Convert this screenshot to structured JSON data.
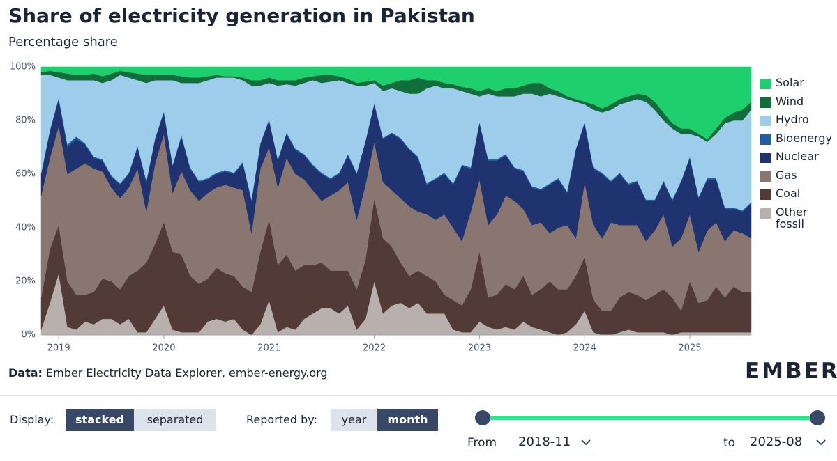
{
  "chart_data": {
    "type": "area",
    "title": "Share of electricity generation in Pakistan",
    "subtitle": "Percentage share",
    "source_label": "Data:",
    "source": "Ember Electricity Data Explorer, ember-energy.org",
    "brand": "EMBER",
    "stacked": true,
    "x": [
      "2018-11",
      "2018-12",
      "2019-01",
      "2019-02",
      "2019-03",
      "2019-04",
      "2019-05",
      "2019-06",
      "2019-07",
      "2019-08",
      "2019-09",
      "2019-10",
      "2019-11",
      "2019-12",
      "2020-01",
      "2020-02",
      "2020-03",
      "2020-04",
      "2020-05",
      "2020-06",
      "2020-07",
      "2020-08",
      "2020-09",
      "2020-10",
      "2020-11",
      "2020-12",
      "2021-01",
      "2021-02",
      "2021-03",
      "2021-04",
      "2021-05",
      "2021-06",
      "2021-07",
      "2021-08",
      "2021-09",
      "2021-10",
      "2021-11",
      "2021-12",
      "2022-01",
      "2022-02",
      "2022-03",
      "2022-04",
      "2022-05",
      "2022-06",
      "2022-07",
      "2022-08",
      "2022-09",
      "2022-10",
      "2022-11",
      "2022-12",
      "2023-01",
      "2023-02",
      "2023-03",
      "2023-04",
      "2023-05",
      "2023-06",
      "2023-07",
      "2023-08",
      "2023-09",
      "2023-10",
      "2023-11",
      "2023-12",
      "2024-01",
      "2024-02",
      "2024-03",
      "2024-04",
      "2024-05",
      "2024-06",
      "2024-07",
      "2024-08",
      "2024-09",
      "2024-10",
      "2024-11",
      "2024-12",
      "2025-01",
      "2025-02",
      "2025-03",
      "2025-04",
      "2025-05",
      "2025-06",
      "2025-07",
      "2025-08"
    ],
    "xticks": [
      {
        "value": "2019-01",
        "label": "2019"
      },
      {
        "value": "2020-01",
        "label": "2020"
      },
      {
        "value": "2021-01",
        "label": "2021"
      },
      {
        "value": "2022-01",
        "label": "2022"
      },
      {
        "value": "2023-01",
        "label": "2023"
      },
      {
        "value": "2024-01",
        "label": "2024"
      },
      {
        "value": "2025-01",
        "label": "2025"
      }
    ],
    "ylim": [
      0,
      100
    ],
    "yticks": [
      {
        "value": 0,
        "label": "0%"
      },
      {
        "value": 20,
        "label": "20%"
      },
      {
        "value": 40,
        "label": "40%"
      },
      {
        "value": 60,
        "label": "60%"
      },
      {
        "value": 80,
        "label": "80%"
      },
      {
        "value": 100,
        "label": "100%"
      }
    ],
    "series": [
      {
        "name": "Solar",
        "color": "#1ecf6e",
        "values": [
          2,
          1.5,
          2,
          2.5,
          3,
          3,
          2.5,
          3.5,
          2.5,
          1.5,
          2,
          2.5,
          3,
          3,
          3,
          3,
          3.5,
          4,
          4,
          3.5,
          3,
          3.5,
          3.5,
          4,
          5,
          5,
          4,
          5,
          5,
          5,
          4,
          3.5,
          3,
          3,
          3.5,
          4.5,
          6,
          5.5,
          5,
          7,
          6,
          5,
          5,
          4,
          5,
          5,
          6,
          6.5,
          7.5,
          8,
          9,
          8,
          9,
          8,
          8,
          7,
          6,
          6,
          8,
          9,
          11,
          12,
          13,
          14,
          15.5,
          14,
          12,
          11,
          10,
          10.5,
          13,
          17,
          21,
          23,
          23,
          25,
          27,
          23,
          19,
          17,
          16,
          13
        ]
      },
      {
        "name": "Wind",
        "color": "#116e3a",
        "values": [
          1,
          1.5,
          2,
          2.5,
          2,
          2,
          2.5,
          2.5,
          2.5,
          1.5,
          2,
          2.5,
          3,
          2,
          2,
          2,
          2.5,
          2,
          2,
          1.5,
          1,
          0.5,
          0.5,
          1,
          2,
          2,
          2,
          2,
          1.5,
          2,
          2,
          1.5,
          3,
          2.5,
          1.5,
          1.5,
          1,
          1.5,
          1,
          2,
          2,
          4,
          5,
          6,
          3,
          2,
          2,
          1.5,
          1.5,
          2,
          2,
          2,
          2,
          3,
          3,
          3,
          4,
          5,
          2,
          2,
          1,
          1,
          1,
          2,
          1.5,
          2,
          2,
          2,
          2,
          2.5,
          3,
          3,
          2,
          2,
          2,
          1,
          1,
          2,
          2,
          3,
          4,
          3
        ]
      },
      {
        "name": "Hydro",
        "color": "#9ecdec",
        "values": [
          36.5,
          20.5,
          7.5,
          24,
          21,
          23.5,
          28.5,
          28.5,
          35.5,
          40.5,
          35.5,
          24.5,
          36.5,
          21.5,
          11.5,
          31.5,
          19.5,
          31.5,
          36.5,
          36.5,
          35.5,
          34.5,
          35.5,
          30.5,
          42.5,
          21.5,
          13.5,
          27.5,
          18,
          23.5,
          26.5,
          31.5,
          33.5,
          36,
          34.5,
          26.5,
          32.5,
          20.5,
          7.5,
          17.5,
          16.5,
          17.5,
          20.5,
          23.5,
          35.5,
          34.5,
          31.5,
          35.5,
          27.5,
          27.5,
          9.5,
          24.5,
          23.5,
          21.5,
          26.5,
          28.5,
          34.5,
          34.5,
          33.5,
          30.5,
          34.5,
          17.5,
          6.5,
          21.5,
          22.5,
          26.5,
          25.5,
          30.5,
          30.5,
          36.5,
          33.5,
          22.5,
          26.5,
          17.5,
          8.5,
          22.5,
          13.5,
          16.5,
          31.5,
          32.5,
          33.5,
          34.5
        ]
      },
      {
        "name": "Bioenergy",
        "color": "#1f5f9e",
        "values": [
          0.5,
          0.5,
          0.5,
          1,
          1,
          0.5,
          0.5,
          0.5,
          0.5,
          0.5,
          0.5,
          0.5,
          0.5,
          0.5,
          0.5,
          0.5,
          0.5,
          0.5,
          0.5,
          0.5,
          0.5,
          0.5,
          0.5,
          0.5,
          0.5,
          0.5,
          0.5,
          0.5,
          0.5,
          0.5,
          0.5,
          0.5,
          0.5,
          0.5,
          0.5,
          0.5,
          0.5,
          0.5,
          0.5,
          0.5,
          0.5,
          0.5,
          0.5,
          0.5,
          0.5,
          0.5,
          0.5,
          0.5,
          0.5,
          0.5,
          0.5,
          0.5,
          0.5,
          0.5,
          0.5,
          0.5,
          0.5,
          0.5,
          0.5,
          0.5,
          0.5,
          0.5,
          0.5,
          0.5,
          0.5,
          0.5,
          0.5,
          0.5,
          0.5,
          0.5,
          0.5,
          0.5,
          0.5,
          0.5,
          0.5,
          0.5,
          0.5,
          0.5,
          0.5,
          0.5,
          0.5,
          0.5
        ]
      },
      {
        "name": "Nuclear",
        "color": "#1f3370",
        "values": [
          8,
          10,
          10,
          10,
          11,
          7,
          4,
          4,
          4,
          5,
          5,
          8,
          11,
          9,
          8,
          10,
          13,
          8,
          7,
          5,
          5,
          5,
          5,
          10,
          12,
          9,
          10,
          10,
          9,
          9,
          9,
          9,
          10,
          6,
          6,
          10,
          17,
          16,
          14,
          16,
          21,
          22,
          21,
          20,
          11,
          15,
          15,
          16,
          28,
          16,
          21,
          24,
          20,
          15,
          12,
          14,
          14,
          12,
          18,
          18,
          12,
          33,
          22,
          21,
          24,
          15,
          19,
          15,
          16,
          15,
          11,
          12,
          17,
          21,
          21,
          20,
          19,
          16,
          12,
          8,
          8,
          13
        ]
      },
      {
        "name": "Gas",
        "color": "#8a7671",
        "values": [
          38,
          34,
          37,
          40,
          47,
          49,
          46,
          40,
          35,
          34,
          33,
          38,
          19,
          30,
          33,
          22,
          31,
          32,
          31,
          32,
          30,
          33,
          33,
          36,
          22,
          31,
          27,
          29,
          36,
          36,
          32,
          28,
          23,
          28,
          30,
          33,
          26,
          28,
          21,
          21,
          21,
          24,
          26,
          22,
          23,
          23,
          30,
          27,
          24,
          29,
          27,
          27,
          30,
          33,
          33,
          25,
          26,
          25,
          18,
          23,
          24,
          14,
          28,
          28,
          27,
          33,
          27,
          25,
          26,
          22,
          24,
          28,
          19,
          27,
          25,
          19,
          26,
          24,
          21,
          21,
          22,
          20
        ]
      },
      {
        "name": "Coal",
        "color": "#523a36",
        "values": [
          12,
          20,
          18,
          17,
          13,
          10,
          12,
          15,
          14,
          13,
          16,
          23,
          26,
          28,
          31,
          29,
          29,
          21,
          18,
          16,
          19,
          18,
          16,
          16,
          16,
          27,
          30,
          25,
          27,
          22,
          20,
          18,
          17,
          14,
          16,
          13,
          15,
          22,
          31,
          28,
          22,
          15,
          12,
          12,
          14,
          12,
          7,
          11,
          10,
          16,
          26,
          11,
          13,
          16,
          15,
          17,
          12,
          15,
          19,
          17,
          16,
          18,
          20,
          12,
          9,
          9,
          13,
          14,
          14,
          12,
          14,
          16,
          14,
          8,
          19,
          11,
          12,
          17,
          13,
          17,
          15,
          15
        ]
      },
      {
        "name": "Other fossil",
        "color": "#b8b0ad",
        "values": [
          2,
          12,
          23,
          3,
          2,
          5,
          4,
          6,
          6,
          4,
          6,
          1,
          1,
          6,
          11,
          2,
          1,
          1,
          1,
          5,
          6,
          5,
          6,
          2,
          0,
          4,
          13,
          1,
          3,
          2,
          6,
          8,
          10,
          10,
          8,
          11,
          2,
          6,
          20,
          8,
          11,
          12,
          10,
          12,
          8,
          8,
          8,
          2,
          1,
          1,
          5,
          3,
          2,
          3,
          2,
          5,
          3,
          2,
          1,
          0,
          1,
          4,
          9,
          1,
          0,
          0,
          1,
          2,
          1,
          1,
          1,
          1,
          0,
          1,
          1,
          1,
          1,
          1,
          1,
          1,
          1,
          1
        ]
      }
    ]
  },
  "controls": {
    "display_label": "Display:",
    "display_options": [
      "stacked",
      "separated"
    ],
    "reported_label": "Reported by:",
    "reported_options": [
      "year",
      "month"
    ],
    "from_label": "From",
    "from_value": "2018-11",
    "to_label": "to",
    "to_value": "2025-08"
  }
}
